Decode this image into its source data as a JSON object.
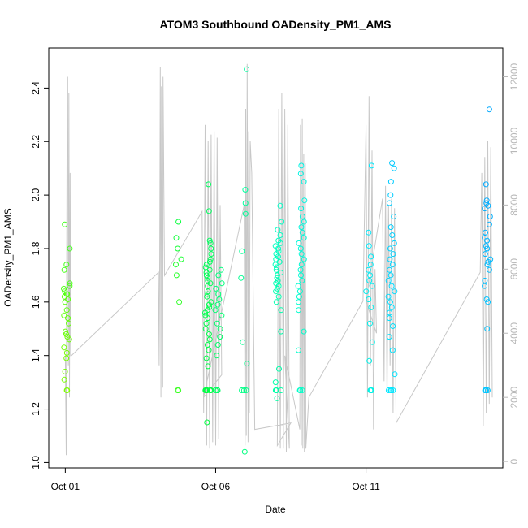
{
  "chart_data": {
    "type": "scatter",
    "title": "ATOM3 Southbound OADensity_PM1_AMS",
    "xlabel": "Date",
    "ylabel": "OADensity_PM1_AMS",
    "x_unit": "days from Oct 01",
    "xlim": [
      -0.55,
      14.55
    ],
    "ylim": [
      0.98,
      2.55
    ],
    "y2lim": [
      -200,
      12900
    ],
    "yticks": [
      1.0,
      1.2,
      1.4,
      1.6,
      1.8,
      2.0,
      2.2,
      2.4
    ],
    "ytick_labels": [
      "1.0",
      "1.2",
      "1.4",
      "1.6",
      "1.8",
      "2.0",
      "2.2",
      "2.4"
    ],
    "y2ticks": [
      0,
      2000,
      4000,
      6000,
      8000,
      10000,
      12000
    ],
    "y2tick_labels": [
      "0",
      "2000",
      "4000",
      "6000",
      "8000",
      "10000",
      "12000"
    ],
    "xticks": [
      0,
      5,
      10
    ],
    "xtick_labels": [
      "Oct 01",
      "Oct 06",
      "Oct 11"
    ],
    "grid": false,
    "colors": {
      "altitude_line": "#c8c8c8",
      "points_gradient": [
        "#7fff00",
        "#00ff40",
        "#00ff80",
        "#00ffc8",
        "#00e8ff",
        "#00a8ff"
      ],
      "axis": "#000000",
      "right_axis": "#b8b8b8"
    },
    "flagged_y": 1.27,
    "series": [
      {
        "kind": "points",
        "flight": 1,
        "x_center": 0.05,
        "y": [
          1.27,
          1.27,
          1.31,
          1.34,
          1.39,
          1.41,
          1.43,
          1.46,
          1.47,
          1.48,
          1.49,
          1.52,
          1.54,
          1.55,
          1.57,
          1.6,
          1.61,
          1.62,
          1.63,
          1.63,
          1.64,
          1.65,
          1.66,
          1.67,
          1.72,
          1.74,
          1.8,
          1.89
        ]
      },
      {
        "kind": "points",
        "flight": 2,
        "x_center": 3.75,
        "y": [
          1.27,
          1.27,
          1.6,
          1.7,
          1.74,
          1.76,
          1.8,
          1.84,
          1.9
        ]
      },
      {
        "kind": "points",
        "flight": 3,
        "x_center": 4.75,
        "y": [
          1.15,
          1.27,
          1.27,
          1.27,
          1.27,
          1.27,
          1.27,
          1.27,
          1.27,
          1.36,
          1.39,
          1.42,
          1.44,
          1.46,
          1.48,
          1.5,
          1.52,
          1.54,
          1.55,
          1.56,
          1.57,
          1.58,
          1.59,
          1.6,
          1.62,
          1.63,
          1.64,
          1.66,
          1.67,
          1.68,
          1.69,
          1.7,
          1.71,
          1.72,
          1.73,
          1.74,
          1.75,
          1.76,
          1.78,
          1.8,
          1.82,
          1.83,
          1.94,
          2.04
        ]
      },
      {
        "kind": "points",
        "flight": 4,
        "x_center": 5.1,
        "y": [
          1.27,
          1.27,
          1.27,
          1.4,
          1.44,
          1.47,
          1.5,
          1.52,
          1.55,
          1.57,
          1.59,
          1.61,
          1.63,
          1.65,
          1.67,
          1.7,
          1.72
        ]
      },
      {
        "kind": "points",
        "flight": 5,
        "x_center": 5.95,
        "y": [
          1.04,
          1.27,
          1.27,
          1.27,
          1.37,
          1.45,
          1.69,
          1.79,
          1.93,
          1.97,
          2.02,
          2.47
        ]
      },
      {
        "kind": "points",
        "flight": 6,
        "x_center": 7.1,
        "y": [
          1.24,
          1.27,
          1.27,
          1.27,
          1.27,
          1.3,
          1.35,
          1.49,
          1.57,
          1.6,
          1.62,
          1.64,
          1.65,
          1.66,
          1.67,
          1.68,
          1.69,
          1.7,
          1.71,
          1.72,
          1.73,
          1.74,
          1.75,
          1.76,
          1.77,
          1.78,
          1.79,
          1.8,
          1.81,
          1.82,
          1.83,
          1.85,
          1.87,
          1.9,
          1.96
        ]
      },
      {
        "kind": "points",
        "flight": 7,
        "x_center": 7.85,
        "y": [
          1.27,
          1.27,
          1.27,
          1.42,
          1.49,
          1.57,
          1.6,
          1.62,
          1.64,
          1.66,
          1.68,
          1.7,
          1.72,
          1.74,
          1.76,
          1.78,
          1.8,
          1.82,
          1.84,
          1.86,
          1.88,
          1.9,
          1.92,
          1.95,
          1.98,
          2.05,
          2.08,
          2.11
        ]
      },
      {
        "kind": "points",
        "flight": 8,
        "x_center": 10.1,
        "y": [
          1.27,
          1.27,
          1.27,
          1.38,
          1.45,
          1.52,
          1.58,
          1.61,
          1.64,
          1.66,
          1.68,
          1.7,
          1.72,
          1.74,
          1.77,
          1.81,
          1.86,
          2.11
        ]
      },
      {
        "kind": "points",
        "flight": 9,
        "x_center": 10.85,
        "y": [
          1.27,
          1.27,
          1.27,
          1.27,
          1.33,
          1.42,
          1.47,
          1.51,
          1.54,
          1.56,
          1.58,
          1.6,
          1.62,
          1.64,
          1.66,
          1.68,
          1.7,
          1.72,
          1.74,
          1.76,
          1.78,
          1.8,
          1.82,
          1.85,
          1.88,
          1.92,
          1.97,
          2.0,
          2.05,
          2.1,
          2.12
        ]
      },
      {
        "kind": "points",
        "flight": 10,
        "x_center": 14.05,
        "y": [
          1.27,
          1.27,
          1.27,
          1.27,
          1.5,
          1.6,
          1.61,
          1.66,
          1.68,
          1.72,
          1.74,
          1.75,
          1.76,
          1.78,
          1.8,
          1.81,
          1.83,
          1.84,
          1.86,
          1.89,
          1.92,
          1.95,
          1.96,
          1.97,
          1.98,
          2.04,
          2.32
        ]
      }
    ],
    "altitude_line": {
      "axis": "right",
      "x": [
        0.0,
        0.03,
        0.06,
        0.08,
        0.1,
        0.12,
        0.14,
        0.16,
        0.18,
        0.2,
        3.1,
        3.12,
        3.14,
        3.16,
        3.18,
        3.2,
        3.22,
        3.24,
        3.25,
        3.3,
        4.55,
        4.6,
        4.65,
        4.7,
        4.75,
        4.8,
        4.85,
        4.9,
        4.95,
        5.0,
        5.05,
        5.1,
        5.15,
        5.2,
        4.6,
        5.95,
        5.98,
        6.0,
        6.02,
        6.05,
        6.08,
        6.1,
        6.12,
        6.15,
        6.2,
        6.3,
        7.5,
        7.05,
        7.1,
        7.15,
        7.2,
        7.25,
        7.3,
        7.35,
        7.4,
        7.45,
        7.3,
        7.8,
        7.82,
        7.85,
        7.88,
        7.9,
        7.93,
        7.95,
        7.98,
        8.0,
        8.1,
        9.9,
        10.0,
        10.05,
        10.1,
        10.15,
        10.2,
        10.25,
        10.3,
        10.35,
        10.0,
        10.55,
        10.6,
        10.65,
        10.7,
        10.75,
        10.8,
        10.85,
        10.9,
        10.95,
        11.0,
        13.8,
        13.85,
        13.9,
        13.95,
        14.0,
        14.05,
        14.1,
        14.15,
        14.2
      ],
      "y": [
        3300,
        200,
        10500,
        12000,
        3000,
        11500,
        2000,
        9000,
        3300,
        3300,
        5900,
        3000,
        6400,
        12300,
        2000,
        11700,
        6000,
        2300,
        12000,
        5800,
        7800,
        1500,
        10500,
        500,
        10000,
        400,
        10200,
        600,
        10300,
        500,
        10100,
        700,
        8000,
        2700,
        2000,
        8000,
        500,
        11000,
        800,
        12400,
        600,
        10300,
        1500,
        10000,
        9000,
        1000,
        1200,
        500,
        11000,
        400,
        11500,
        400,
        11000,
        300,
        10500,
        400,
        3300,
        1000,
        10500,
        500,
        10700,
        400,
        9600,
        300,
        9300,
        400,
        2000,
        5000,
        10500,
        2000,
        11400,
        3000,
        9700,
        1000,
        6000,
        4000,
        5000,
        8200,
        2500,
        8600,
        2000,
        8000,
        3000,
        8200,
        1500,
        7900,
        1200,
        5900,
        9000,
        1100,
        9500,
        1500,
        10000,
        1800,
        9800,
        2000
      ]
    }
  }
}
